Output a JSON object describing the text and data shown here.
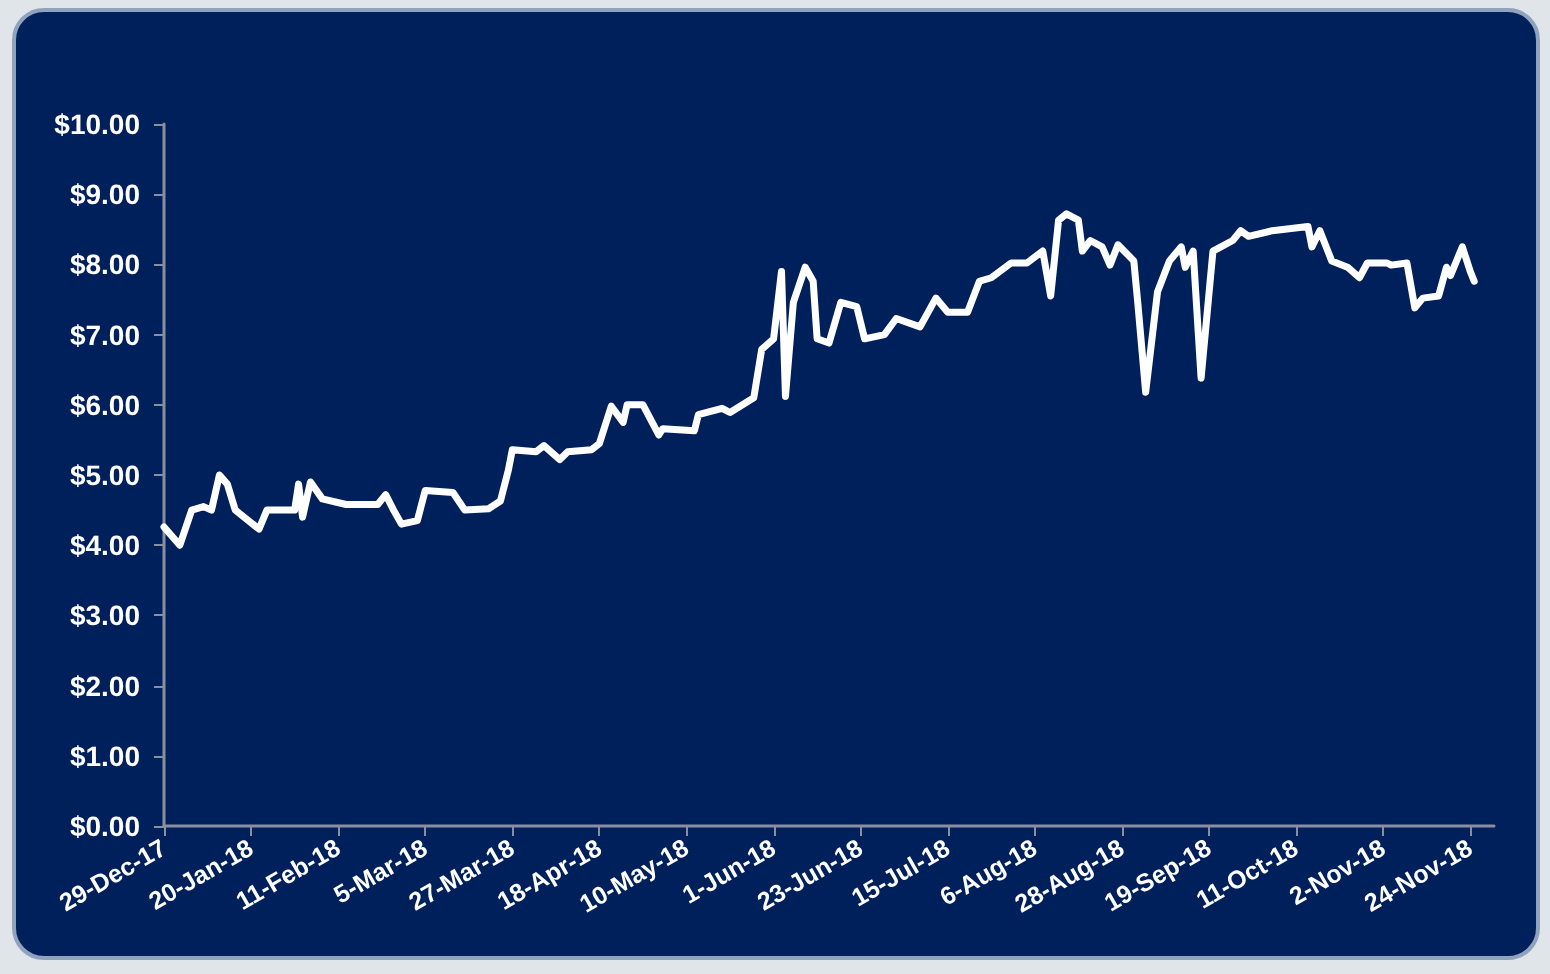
{
  "chart_data": {
    "type": "line",
    "x": [
      "2017-12-29",
      "2018-01-02",
      "2018-01-05",
      "2018-01-08",
      "2018-01-10",
      "2018-01-12",
      "2018-01-14",
      "2018-01-16",
      "2018-01-22",
      "2018-01-24",
      "2018-01-31",
      "2018-02-01",
      "2018-02-02",
      "2018-02-04",
      "2018-02-07",
      "2018-02-13",
      "2018-02-21",
      "2018-02-23",
      "2018-02-25",
      "2018-02-27",
      "2018-03-03",
      "2018-03-05",
      "2018-03-12",
      "2018-03-15",
      "2018-03-21",
      "2018-03-24",
      "2018-03-26",
      "2018-03-27",
      "2018-04-02",
      "2018-04-04",
      "2018-04-08",
      "2018-04-10",
      "2018-04-16",
      "2018-04-18",
      "2018-04-21",
      "2018-04-24",
      "2018-04-25",
      "2018-04-29",
      "2018-05-03",
      "2018-05-04",
      "2018-05-12",
      "2018-05-13",
      "2018-05-19",
      "2018-05-21",
      "2018-05-27",
      "2018-05-29",
      "2018-06-01",
      "2018-06-03",
      "2018-06-04",
      "2018-06-06",
      "2018-06-09",
      "2018-06-11",
      "2018-06-12",
      "2018-06-15",
      "2018-06-18",
      "2018-06-22",
      "2018-06-24",
      "2018-06-29",
      "2018-07-02",
      "2018-07-08",
      "2018-07-12",
      "2018-07-15",
      "2018-07-20",
      "2018-07-23",
      "2018-07-26",
      "2018-07-31",
      "2018-08-04",
      "2018-08-08",
      "2018-08-10",
      "2018-08-12",
      "2018-08-14",
      "2018-08-17",
      "2018-08-18",
      "2018-08-20",
      "2018-08-23",
      "2018-08-25",
      "2018-08-27",
      "2018-08-31",
      "2018-09-01",
      "2018-09-03",
      "2018-09-06",
      "2018-09-09",
      "2018-09-12",
      "2018-09-13",
      "2018-09-15",
      "2018-09-17",
      "2018-09-20",
      "2018-09-22",
      "2018-09-25",
      "2018-09-27",
      "2018-09-29",
      "2018-10-05",
      "2018-10-14",
      "2018-10-15",
      "2018-10-17",
      "2018-10-20",
      "2018-10-24",
      "2018-10-27",
      "2018-10-29",
      "2018-11-03",
      "2018-11-04",
      "2018-11-08",
      "2018-11-10",
      "2018-11-12",
      "2018-11-16",
      "2018-11-18",
      "2018-11-19",
      "2018-11-22",
      "2018-11-24",
      "2018-11-25"
    ],
    "series": [
      {
        "color": "#ffffff",
        "values": [
          4.26,
          4.0,
          4.5,
          4.55,
          4.5,
          5.0,
          4.87,
          4.5,
          4.23,
          4.5,
          4.5,
          4.87,
          4.4,
          4.9,
          4.66,
          4.58,
          4.58,
          4.72,
          4.5,
          4.3,
          4.35,
          4.78,
          4.75,
          4.5,
          4.52,
          4.63,
          5.07,
          5.36,
          5.33,
          5.42,
          5.22,
          5.33,
          5.36,
          5.45,
          5.98,
          5.75,
          6.0,
          6.0,
          5.57,
          5.66,
          5.63,
          5.86,
          5.95,
          5.89,
          6.1,
          6.79,
          6.94,
          7.9,
          6.12,
          7.46,
          7.96,
          7.76,
          6.94,
          6.88,
          7.46,
          7.4,
          6.94,
          7.0,
          7.23,
          7.11,
          7.52,
          7.32,
          7.32,
          7.76,
          7.81,
          8.02,
          8.02,
          8.19,
          7.55,
          8.63,
          8.72,
          8.63,
          8.19,
          8.34,
          8.25,
          7.99,
          8.28,
          8.05,
          7.46,
          6.18,
          7.61,
          8.05,
          8.25,
          7.96,
          8.19,
          6.38,
          8.19,
          8.25,
          8.34,
          8.48,
          8.4,
          8.48,
          8.54,
          8.25,
          8.48,
          8.05,
          7.96,
          7.81,
          8.02,
          8.02,
          7.99,
          8.02,
          7.38,
          7.52,
          7.55,
          7.96,
          7.84,
          8.25,
          7.9,
          7.76
        ]
      }
    ],
    "xlim": [
      "2017-12-29",
      "2018-11-30"
    ],
    "xticks": [
      {
        "value": "2017-12-29",
        "label": "29-Dec-17"
      },
      {
        "value": "2018-01-20",
        "label": "20-Jan-18"
      },
      {
        "value": "2018-02-11",
        "label": "11-Feb-18"
      },
      {
        "value": "2018-03-05",
        "label": "5-Mar-18"
      },
      {
        "value": "2018-03-27",
        "label": "27-Mar-18"
      },
      {
        "value": "2018-04-18",
        "label": "18-Apr-18"
      },
      {
        "value": "2018-05-10",
        "label": "10-May-18"
      },
      {
        "value": "2018-06-01",
        "label": "1-Jun-18"
      },
      {
        "value": "2018-06-23",
        "label": "23-Jun-18"
      },
      {
        "value": "2018-07-15",
        "label": "15-Jul-18"
      },
      {
        "value": "2018-08-06",
        "label": "6-Aug-18"
      },
      {
        "value": "2018-08-28",
        "label": "28-Aug-18"
      },
      {
        "value": "2018-09-19",
        "label": "19-Sep-18"
      },
      {
        "value": "2018-10-11",
        "label": "11-Oct-18"
      },
      {
        "value": "2018-11-02",
        "label": "2-Nov-18"
      },
      {
        "value": "2018-11-24",
        "label": "24-Nov-18"
      }
    ],
    "ylim": [
      0,
      10
    ],
    "yticks": [
      {
        "value": 0,
        "label": "$0.00"
      },
      {
        "value": 1,
        "label": "$1.00"
      },
      {
        "value": 2,
        "label": "$2.00"
      },
      {
        "value": 3,
        "label": "$3.00"
      },
      {
        "value": 4,
        "label": "$4.00"
      },
      {
        "value": 5,
        "label": "$5.00"
      },
      {
        "value": 6,
        "label": "$6.00"
      },
      {
        "value": 7,
        "label": "$7.00"
      },
      {
        "value": 8,
        "label": "$8.00"
      },
      {
        "value": 9,
        "label": "$9.00"
      },
      {
        "value": 10,
        "label": "$10.00"
      }
    ],
    "grid": false,
    "marker": "none",
    "line_style": "solid"
  }
}
